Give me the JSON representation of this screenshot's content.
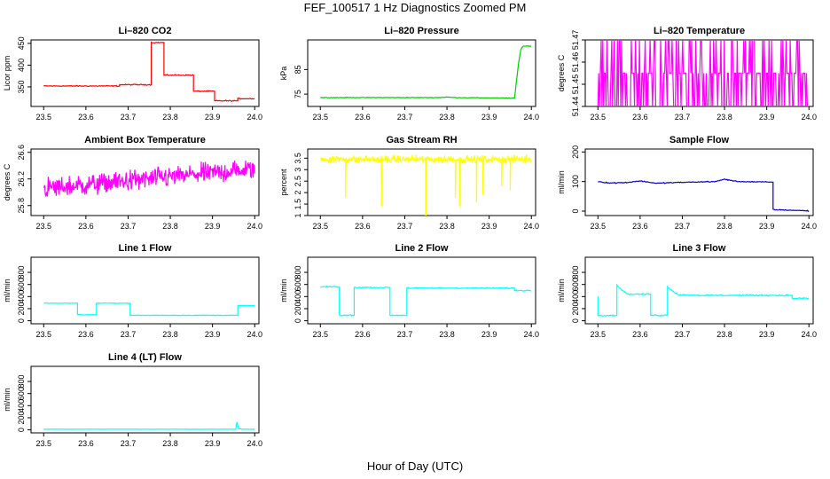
{
  "title": "FEF_100517  1 Hz Diagnostics Zoomed PM",
  "xlabel": "Hour of Day (UTC)",
  "chart_data": [
    {
      "type": "line",
      "title": "Li–820 CO2",
      "ylabel": "Licor ppm",
      "color": "#ff0000",
      "xlim": [
        23.47,
        24.01
      ],
      "xticks": [
        "23.5",
        "23.6",
        "23.7",
        "23.8",
        "23.9",
        "24.0"
      ],
      "ylim": [
        305,
        458
      ],
      "yticks": [
        350,
        400,
        450
      ],
      "series": [
        {
          "x": [
            23.5,
            23.68,
            23.68,
            23.755,
            23.755,
            23.785,
            23.785,
            23.82,
            23.82,
            23.855,
            23.855,
            23.905,
            23.905,
            23.96,
            23.96,
            24.0
          ],
          "y": [
            352,
            352,
            355,
            355,
            452,
            452,
            377,
            377,
            377,
            377,
            340,
            340,
            318,
            318,
            323,
            323
          ],
          "noise": 1.5
        }
      ]
    },
    {
      "type": "line",
      "title": "Li–820 Pressure",
      "ylabel": "kPa",
      "color": "#00cc00",
      "xlim": [
        23.47,
        24.01
      ],
      "xticks": [
        "23.5",
        "23.6",
        "23.7",
        "23.8",
        "23.9",
        "24.0"
      ],
      "ylim": [
        70,
        97
      ],
      "yticks": [
        75,
        85
      ],
      "series": [
        {
          "x": [
            23.5,
            23.78,
            23.8,
            23.82,
            23.95,
            23.96,
            23.97,
            23.975,
            23.98,
            24.0
          ],
          "y": [
            73.6,
            73.6,
            73.8,
            73.6,
            73.4,
            73.4,
            88,
            93,
            94.5,
            94.5
          ],
          "noise": 0.15
        }
      ]
    },
    {
      "type": "line",
      "title": "Li–820 Temperature",
      "ylabel": "degrees C",
      "color": "#ff00ff",
      "xlim": [
        23.47,
        24.01
      ],
      "xticks": [
        "23.5",
        "23.6",
        "23.7",
        "23.8",
        "23.9",
        "24.0"
      ],
      "ylim": [
        51.44,
        51.47
      ],
      "yticks": [
        51.44,
        51.45,
        51.46,
        51.47
      ],
      "series": [
        {
          "kind": "toggle",
          "levels": [
            51.44,
            51.455,
            51.47
          ],
          "x_range": [
            23.5,
            24.0
          ],
          "base": 51.455
        }
      ]
    },
    {
      "type": "line",
      "title": "Ambient Box Temperature",
      "ylabel": "degrees C",
      "color": "#ff00ff",
      "xlim": [
        23.47,
        24.01
      ],
      "xticks": [
        "23.5",
        "23.6",
        "23.7",
        "23.8",
        "23.9",
        "24.0"
      ],
      "ylim": [
        25.65,
        26.65
      ],
      "yticks": [
        25.8,
        26.2,
        26.6
      ],
      "series": [
        {
          "kind": "noise",
          "x": [
            23.5,
            24.0
          ],
          "y": [
            26.05,
            26.35
          ],
          "noise": 0.12
        }
      ]
    },
    {
      "type": "line",
      "title": "Gas Stream RH",
      "ylabel": "percent",
      "color": "#ffff00",
      "xlim": [
        23.47,
        24.01
      ],
      "xticks": [
        "23.5",
        "23.6",
        "23.7",
        "23.8",
        "23.9",
        "24.0"
      ],
      "ylim": [
        1.0,
        3.9
      ],
      "yticks": [
        1.0,
        1.5,
        2.0,
        2.5,
        3.0,
        3.5
      ],
      "series": [
        {
          "kind": "noise",
          "x": [
            23.5,
            24.0
          ],
          "y": [
            3.45,
            3.45
          ],
          "noise": 0.12,
          "spikes": [
            [
              23.56,
              1.8
            ],
            [
              23.645,
              1.4
            ],
            [
              23.75,
              1.0
            ],
            [
              23.82,
              1.8
            ],
            [
              23.83,
              1.4
            ],
            [
              23.87,
              1.6
            ],
            [
              23.885,
              1.9
            ],
            [
              23.93,
              2.3
            ],
            [
              23.95,
              2.1
            ]
          ]
        }
      ]
    },
    {
      "type": "line",
      "title": "Sample Flow",
      "ylabel": "ml/min",
      "color": "#0000cc",
      "xlim": [
        23.47,
        24.01
      ],
      "xticks": [
        "23.5",
        "23.6",
        "23.7",
        "23.8",
        "23.9",
        "24.0"
      ],
      "ylim": [
        -15,
        210
      ],
      "yticks": [
        0,
        100,
        200
      ],
      "series": [
        {
          "x": [
            23.5,
            23.53,
            23.57,
            23.6,
            23.64,
            23.67,
            23.72,
            23.78,
            23.8,
            23.83,
            23.915,
            23.915,
            24.0
          ],
          "y": [
            100,
            95,
            97,
            102,
            94,
            96,
            98,
            100,
            108,
            100,
            98,
            5,
            1
          ],
          "noise": 2
        }
      ]
    },
    {
      "type": "line",
      "title": "Line 1 Flow",
      "ylabel": "ml/min",
      "color": "#00ffff",
      "xlim": [
        23.47,
        24.01
      ],
      "xticks": [
        "23.5",
        "23.6",
        "23.7",
        "23.8",
        "23.9",
        "24.0"
      ],
      "ylim": [
        -50,
        1050
      ],
      "yticks": [
        0,
        200,
        400,
        600,
        800
      ],
      "series": [
        {
          "x": [
            23.5,
            23.58,
            23.58,
            23.625,
            23.625,
            23.705,
            23.705,
            23.96,
            23.96,
            24.0
          ],
          "y": [
            290,
            290,
            100,
            100,
            290,
            290,
            90,
            90,
            250,
            250
          ],
          "noise": 6
        }
      ]
    },
    {
      "type": "line",
      "title": "Line 2 Flow",
      "ylabel": "ml/min",
      "color": "#00ffff",
      "xlim": [
        23.47,
        24.01
      ],
      "xticks": [
        "23.5",
        "23.6",
        "23.7",
        "23.8",
        "23.9",
        "24.0"
      ],
      "ylim": [
        -50,
        1050
      ],
      "yticks": [
        0,
        200,
        400,
        600,
        800
      ],
      "series": [
        {
          "x": [
            23.5,
            23.545,
            23.545,
            23.58,
            23.58,
            23.665,
            23.665,
            23.705,
            23.705,
            23.96,
            23.96,
            24.0
          ],
          "y": [
            560,
            560,
            90,
            90,
            550,
            550,
            90,
            90,
            540,
            540,
            500,
            500
          ],
          "noise": 12
        }
      ]
    },
    {
      "type": "line",
      "title": "Line 3 Flow",
      "ylabel": "ml/min",
      "color": "#00ffff",
      "xlim": [
        23.47,
        24.01
      ],
      "xticks": [
        "23.5",
        "23.6",
        "23.7",
        "23.8",
        "23.9",
        "24.0"
      ],
      "ylim": [
        -50,
        1050
      ],
      "yticks": [
        0,
        200,
        400,
        600,
        800
      ],
      "series": [
        {
          "x": [
            23.5,
            23.5,
            23.505,
            23.505,
            23.545,
            23.545,
            23.57,
            23.625,
            23.625,
            23.665,
            23.665,
            23.69,
            23.75,
            23.96,
            23.96,
            24.0
          ],
          "y": [
            400,
            90,
            90,
            90,
            90,
            580,
            440,
            440,
            90,
            90,
            560,
            430,
            420,
            420,
            370,
            370
          ],
          "noise": 14
        }
      ]
    },
    {
      "type": "line",
      "title": "Line 4 (LT) Flow",
      "ylabel": "ml/min",
      "color": "#00ffff",
      "xlim": [
        23.47,
        24.01
      ],
      "xticks": [
        "23.5",
        "23.6",
        "23.7",
        "23.8",
        "23.9",
        "24.0"
      ],
      "ylim": [
        -50,
        1050
      ],
      "yticks": [
        0,
        200,
        400,
        600,
        800
      ],
      "series": [
        {
          "x": [
            23.5,
            23.955,
            23.958,
            23.962,
            23.97,
            24.0
          ],
          "y": [
            10,
            10,
            130,
            20,
            10,
            10
          ],
          "noise": 2
        }
      ]
    }
  ]
}
